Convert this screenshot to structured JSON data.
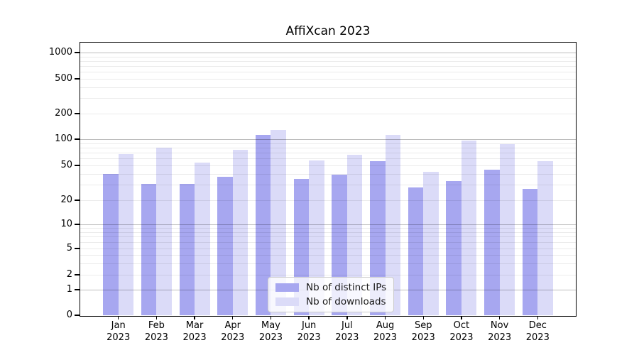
{
  "chart_data": {
    "type": "bar",
    "title": "AffiXcan 2023",
    "categories": [
      "Jan 2023",
      "Feb 2023",
      "Mar 2023",
      "Apr 2023",
      "May 2023",
      "Jun 2023",
      "Jul 2023",
      "Aug 2023",
      "Sep 2023",
      "Oct 2023",
      "Nov 2023",
      "Dec 2023"
    ],
    "series": [
      {
        "name": "Nb of distinct IPs",
        "color": "#a7a7f0",
        "values": [
          40,
          31,
          31,
          37,
          112,
          35,
          39,
          56,
          28,
          33,
          45,
          27
        ]
      },
      {
        "name": "Nb of downloads",
        "color": "#dbdbf8",
        "values": [
          68,
          80,
          54,
          75,
          128,
          57,
          66,
          112,
          42,
          96,
          88,
          56
        ]
      }
    ],
    "yscale": "symlog",
    "yticks": [
      0,
      1,
      2,
      5,
      10,
      20,
      50,
      100,
      200,
      500,
      1000
    ],
    "ylim": [
      0,
      1200
    ],
    "xlabel": "",
    "ylabel": "",
    "grid": true,
    "legend_position": "lower center"
  }
}
